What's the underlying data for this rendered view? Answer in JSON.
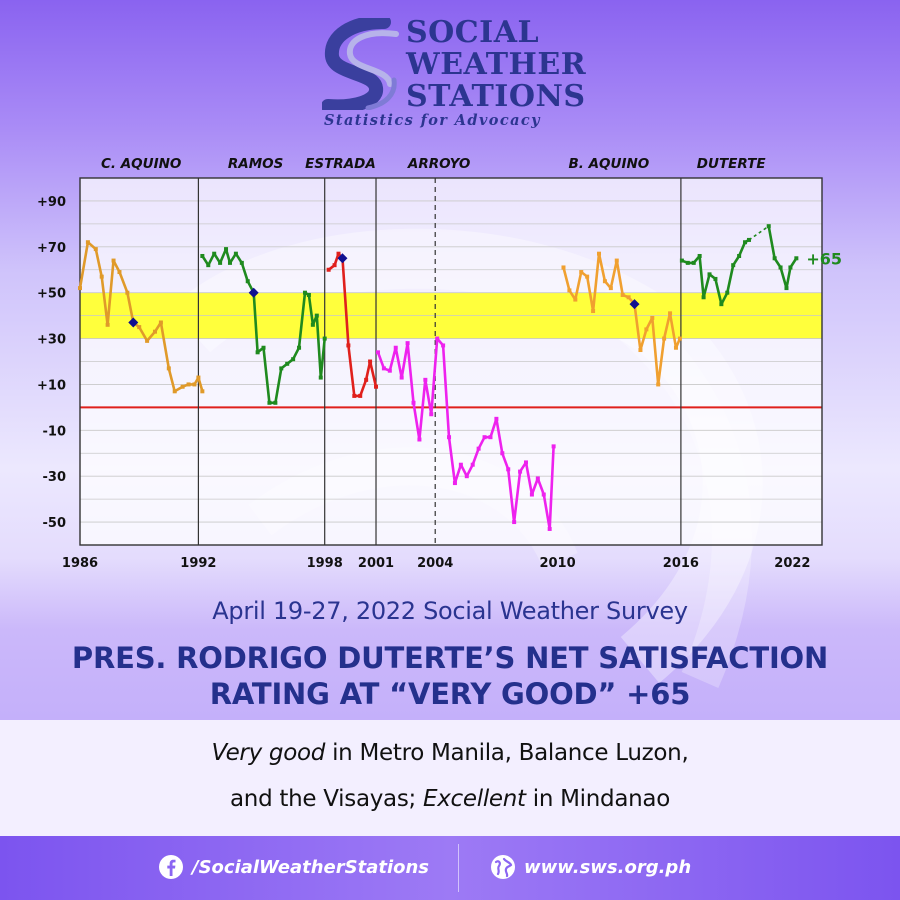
{
  "logo": {
    "line1": "SOCIAL",
    "line2": "WEATHER",
    "line3": "STATIONS",
    "tagline": "Statistics for Advocacy"
  },
  "colors": {
    "background": "#a98bf6",
    "navy": "#24308c",
    "yellow_band": "#ffff3c",
    "zero_line": "#e0201c",
    "c_aquino": "#e09a2a",
    "ramos": "#1f8a1f",
    "estrada": "#e0201c",
    "arroyo": "#ee22ee",
    "b_aquino": "#f0a030",
    "duterte": "#1f8a1f",
    "marker": "#101090"
  },
  "chart_data": {
    "type": "line",
    "presidents": [
      "C. AQUINO",
      "RAMOS",
      "ESTRADA",
      "ARROYO",
      "B. AQUINO",
      "DUTERTE"
    ],
    "x_ticks": [
      "1986",
      "1992",
      "1998",
      "2001",
      "2004",
      "2010",
      "2016",
      "2022"
    ],
    "y_ticks": [
      "+90",
      "+70",
      "+50",
      "+30",
      "+10",
      "-10",
      "-30",
      "-50"
    ],
    "xlim": [
      1986,
      2023.6
    ],
    "ylim": [
      -60,
      100
    ],
    "highlight_band": [
      30,
      50
    ],
    "end_label": "+65",
    "series": [
      {
        "color": "#e09a2a",
        "points": [
          [
            1986.0,
            52
          ],
          [
            1986.4,
            72
          ],
          [
            1986.8,
            69
          ],
          [
            1987.1,
            57
          ],
          [
            1987.4,
            36
          ],
          [
            1987.7,
            64
          ],
          [
            1988.0,
            59
          ],
          [
            1988.4,
            50
          ],
          [
            1988.7,
            37
          ],
          [
            1989.0,
            35
          ],
          [
            1989.4,
            29
          ],
          [
            1989.8,
            33
          ],
          [
            1990.1,
            37
          ],
          [
            1990.5,
            17
          ],
          [
            1990.8,
            7
          ],
          [
            1991.2,
            9
          ],
          [
            1991.5,
            10
          ],
          [
            1991.8,
            10
          ],
          [
            1992.0,
            13
          ],
          [
            1992.2,
            7
          ]
        ]
      },
      {
        "color": "#1f8a1f",
        "points": [
          [
            1992.2,
            66
          ],
          [
            1992.5,
            62
          ],
          [
            1992.8,
            67
          ],
          [
            1993.1,
            63
          ],
          [
            1993.4,
            69
          ],
          [
            1993.6,
            63
          ],
          [
            1993.9,
            67
          ],
          [
            1994.2,
            63
          ],
          [
            1994.5,
            55
          ],
          [
            1994.8,
            50
          ],
          [
            1995.0,
            24
          ],
          [
            1995.3,
            26
          ],
          [
            1995.6,
            2
          ],
          [
            1995.9,
            2
          ],
          [
            1996.2,
            17
          ],
          [
            1996.5,
            19
          ],
          [
            1996.8,
            21
          ],
          [
            1997.1,
            26
          ],
          [
            1997.4,
            50
          ],
          [
            1997.6,
            49
          ],
          [
            1997.8,
            36
          ],
          [
            1998.0,
            40
          ],
          [
            1998.2,
            13
          ],
          [
            1998.4,
            30
          ]
        ]
      },
      {
        "color": "#e0201c",
        "points": [
          [
            1998.6,
            60
          ],
          [
            1998.9,
            62
          ],
          [
            1999.1,
            67
          ],
          [
            1999.3,
            65
          ],
          [
            1999.6,
            27
          ],
          [
            1999.9,
            5
          ],
          [
            2000.2,
            5
          ],
          [
            2000.5,
            12
          ],
          [
            2000.7,
            20
          ],
          [
            2001.0,
            9
          ]
        ]
      },
      {
        "color": "#ee22ee",
        "points": [
          [
            2001.1,
            24
          ],
          [
            2001.4,
            17
          ],
          [
            2001.7,
            16
          ],
          [
            2002.0,
            26
          ],
          [
            2002.3,
            13
          ],
          [
            2002.6,
            28
          ],
          [
            2002.9,
            2
          ],
          [
            2003.2,
            -14
          ],
          [
            2003.5,
            12
          ],
          [
            2003.8,
            -3
          ],
          [
            2004.1,
            30
          ],
          [
            2004.4,
            27
          ],
          [
            2004.7,
            -13
          ],
          [
            2005.0,
            -33
          ],
          [
            2005.3,
            -25
          ],
          [
            2005.6,
            -30
          ],
          [
            2005.9,
            -25
          ],
          [
            2006.2,
            -18
          ],
          [
            2006.5,
            -13
          ],
          [
            2006.8,
            -13
          ],
          [
            2007.1,
            -5
          ],
          [
            2007.4,
            -20
          ],
          [
            2007.7,
            -27
          ],
          [
            2008.0,
            -50
          ],
          [
            2008.3,
            -28
          ],
          [
            2008.6,
            -24
          ],
          [
            2008.9,
            -38
          ],
          [
            2009.2,
            -31
          ],
          [
            2009.5,
            -38
          ],
          [
            2009.8,
            -53
          ],
          [
            2010.0,
            -17
          ]
        ]
      },
      {
        "color": "#f0a030",
        "points": [
          [
            2010.5,
            61
          ],
          [
            2010.8,
            51
          ],
          [
            2011.1,
            47
          ],
          [
            2011.4,
            59
          ],
          [
            2011.7,
            57
          ],
          [
            2012.0,
            42
          ],
          [
            2012.3,
            67
          ],
          [
            2012.6,
            55
          ],
          [
            2012.9,
            52
          ],
          [
            2013.2,
            64
          ],
          [
            2013.5,
            49
          ],
          [
            2013.8,
            48
          ],
          [
            2014.1,
            45
          ],
          [
            2014.4,
            25
          ],
          [
            2014.7,
            34
          ],
          [
            2015.0,
            39
          ],
          [
            2015.3,
            10
          ],
          [
            2015.6,
            30
          ],
          [
            2015.9,
            41
          ],
          [
            2016.2,
            26
          ],
          [
            2016.4,
            30
          ]
        ]
      },
      {
        "color": "#1f8a1f",
        "points": [
          [
            2016.5,
            64
          ],
          [
            2016.8,
            63
          ],
          [
            2017.1,
            63
          ],
          [
            2017.4,
            66
          ],
          [
            2017.6,
            48
          ],
          [
            2017.9,
            58
          ],
          [
            2018.2,
            56
          ],
          [
            2018.5,
            45
          ],
          [
            2018.8,
            50
          ],
          [
            2019.1,
            62
          ],
          [
            2019.4,
            66
          ],
          [
            2019.7,
            72
          ],
          [
            2019.9,
            73
          ]
        ]
      },
      {
        "color": "#1f8a1f",
        "points": [
          [
            2020.9,
            79
          ],
          [
            2021.2,
            65
          ],
          [
            2021.5,
            61
          ],
          [
            2021.8,
            52
          ],
          [
            2022.0,
            61
          ],
          [
            2022.3,
            65
          ]
        ]
      }
    ],
    "dashed_connector": [
      [
        2019.9,
        73
      ],
      [
        2020.9,
        79
      ]
    ],
    "term_markers": [
      [
        1988.7,
        37
      ],
      [
        1994.8,
        50
      ],
      [
        1999.3,
        65
      ],
      [
        2014.1,
        45
      ]
    ]
  },
  "headline": {
    "subtitle": "April 19-27, 2022 Social Weather Survey",
    "title_line1": "PRES. RODRIGO DUTERTE’S NET SATISFACTION",
    "title_line2": "RATING AT “VERY GOOD” +65"
  },
  "summary": {
    "line1_italic": "Very good",
    "line1_rest": " in Metro Manila, Balance Luzon,",
    "line2_start": "and the Visayas; ",
    "line2_italic": "Excellent",
    "line2_rest": " in Mindanao"
  },
  "footer": {
    "facebook": "/SocialWeatherStations",
    "website": "www.sws.org.ph",
    "facebook_icon": "facebook-icon",
    "globe_icon": "globe-icon"
  }
}
